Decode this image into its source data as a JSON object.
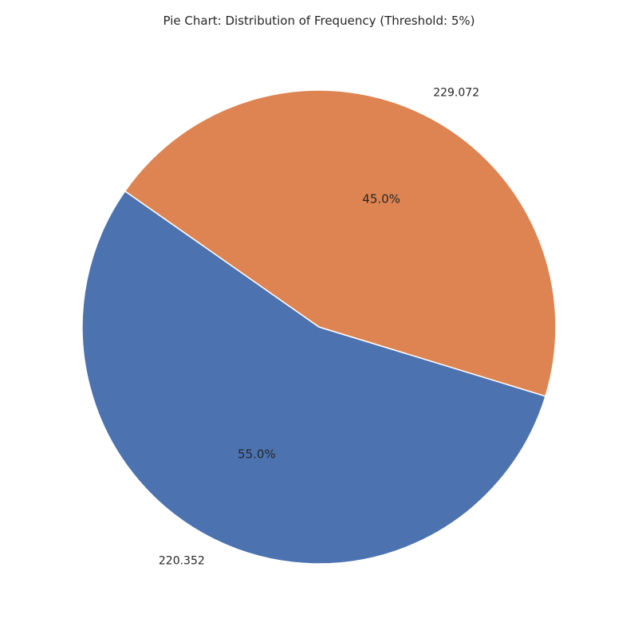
{
  "chart_data": {
    "type": "pie",
    "title": "Pie Chart: Distribution of Frequency (Threshold: 5%)",
    "slices": [
      {
        "label": "220.352",
        "percent_label": "55.0%",
        "value": 55.0,
        "color": "#4c72b0"
      },
      {
        "label": "229.072",
        "percent_label": "45.0%",
        "value": 45.0,
        "color": "#dd8452"
      }
    ],
    "slice_edge_color": "#ffffff"
  }
}
